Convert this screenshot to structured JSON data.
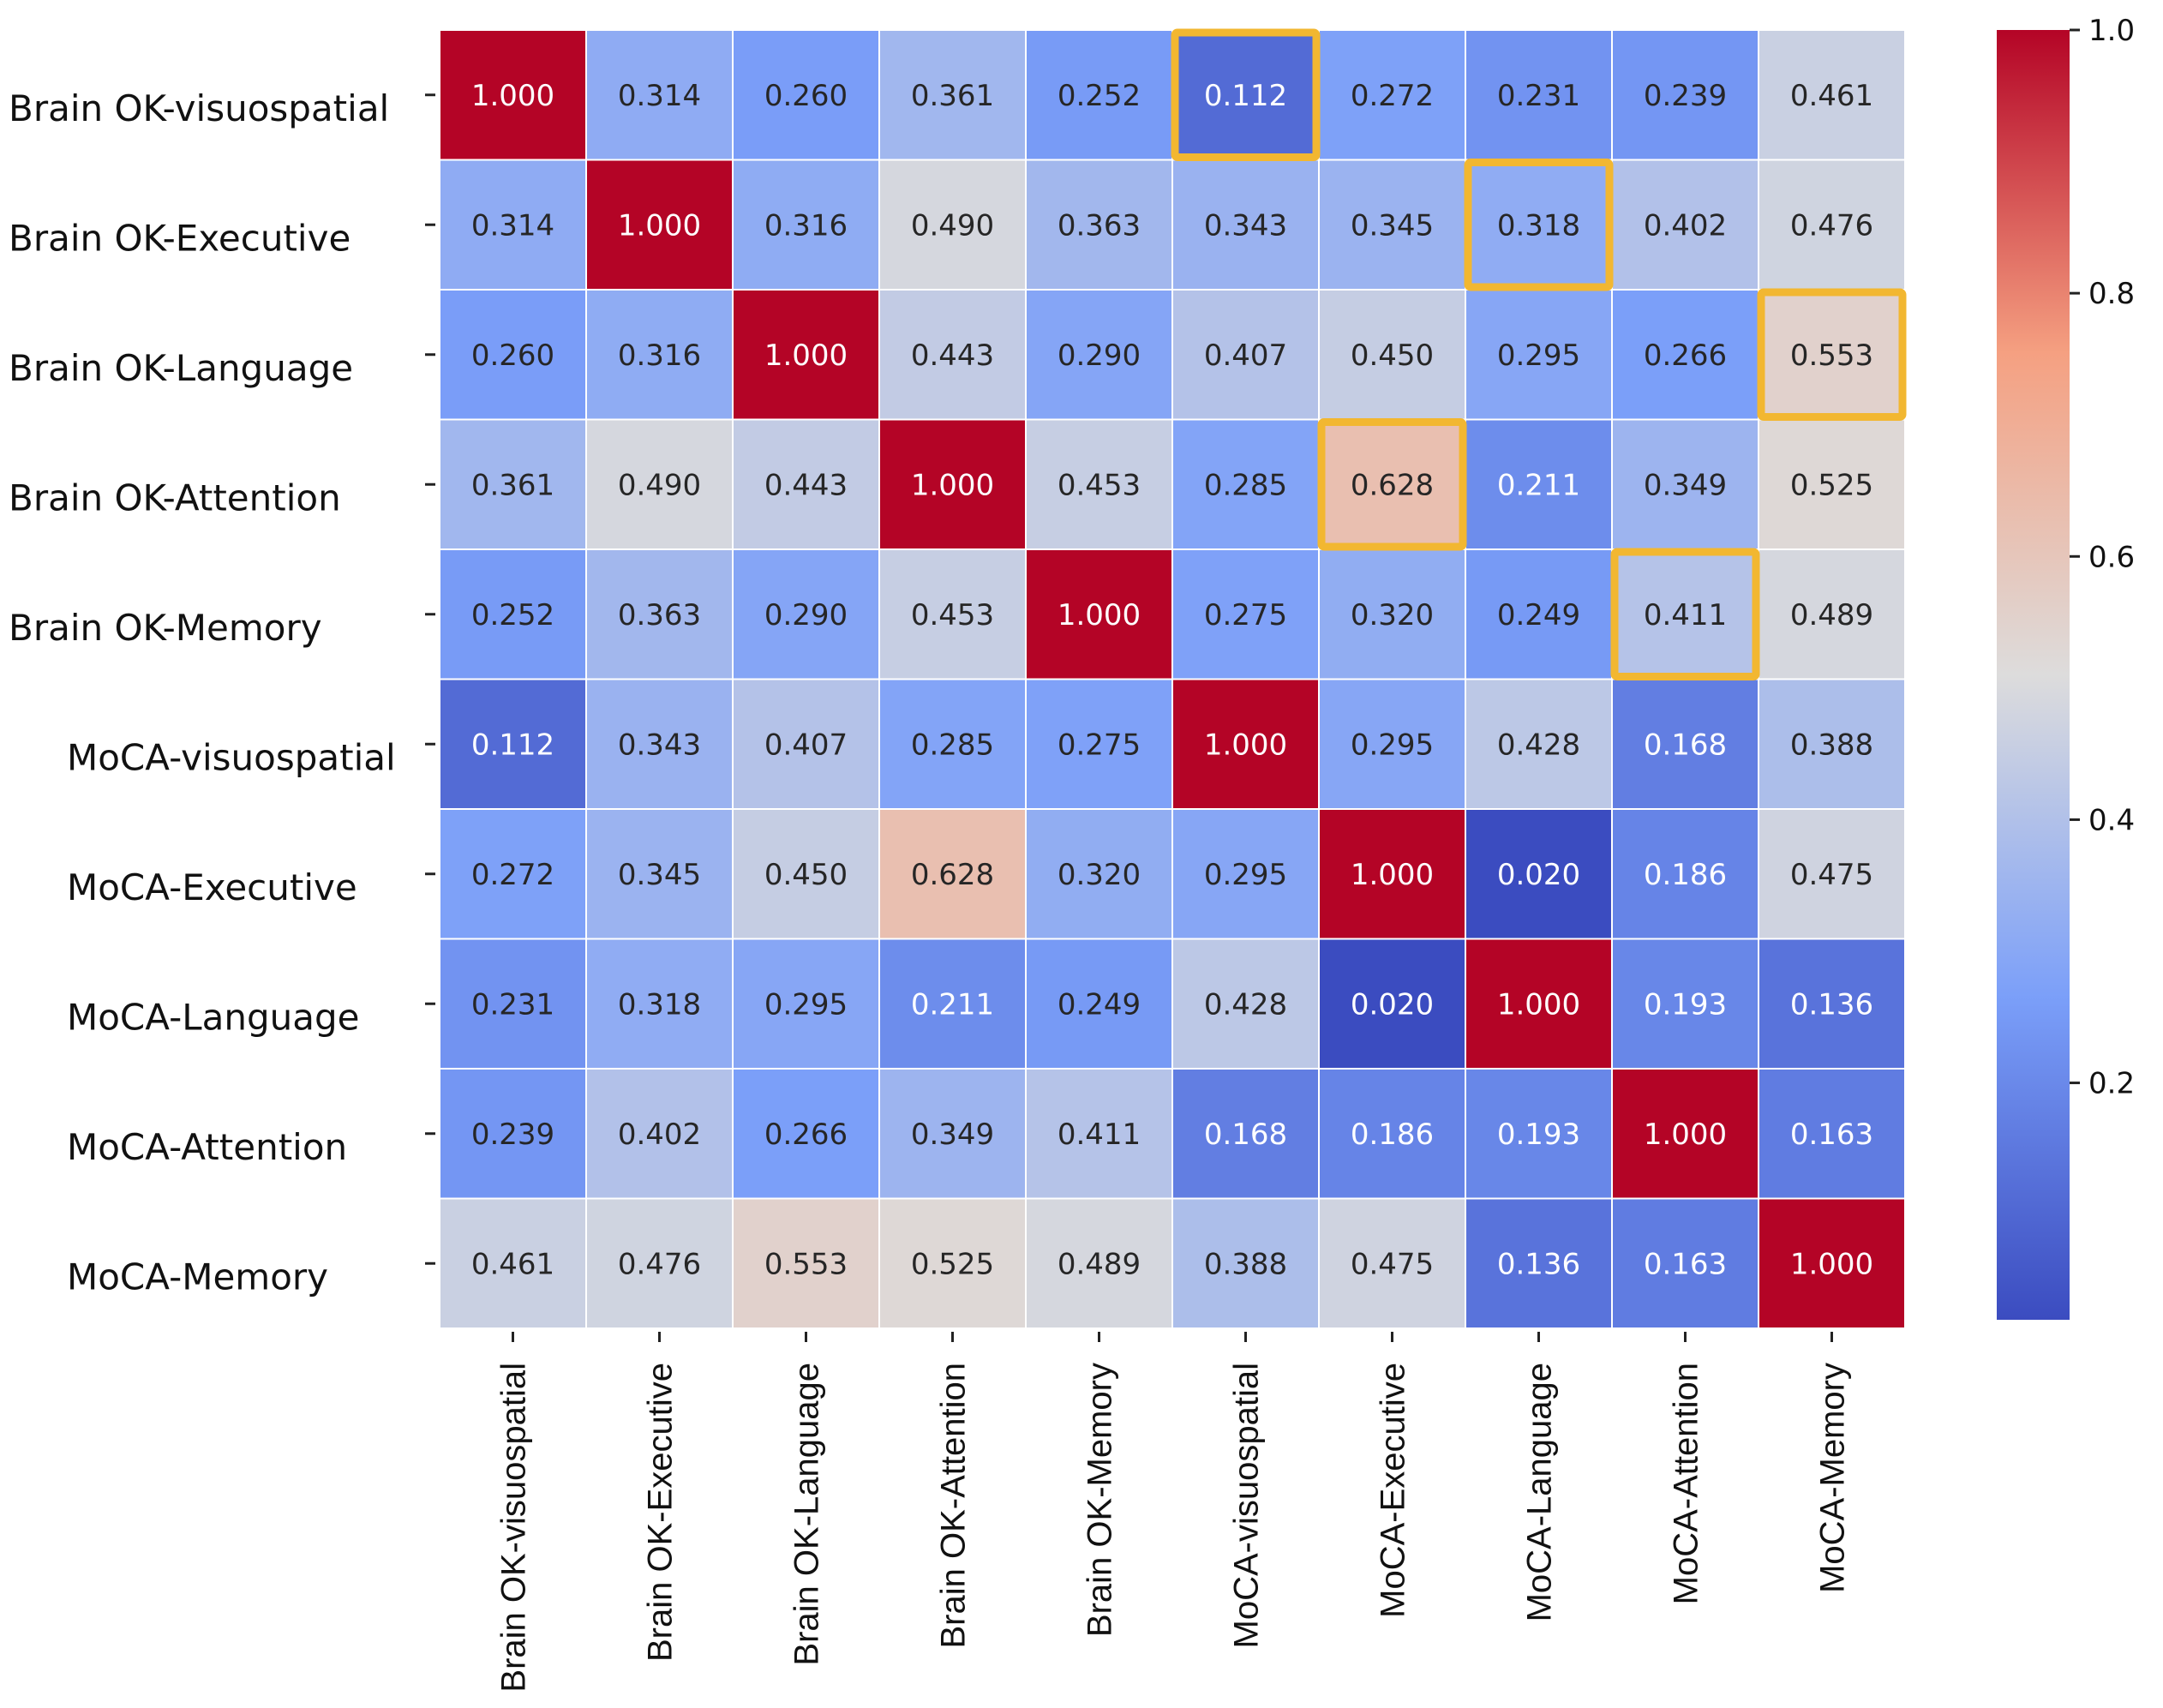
{
  "chart_data": {
    "type": "heatmap",
    "title": "",
    "row_labels": [
      "Brain OK-visuospatial",
      "Brain OK-Executive",
      "Brain OK-Language",
      "Brain OK-Attention",
      "Brain OK-Memory",
      "MoCA-visuospatial",
      "MoCA-Executive",
      "MoCA-Language",
      "MoCA-Attention",
      "MoCA-Memory"
    ],
    "col_labels": [
      "Brain OK-visuospatial",
      "Brain OK-Executive",
      "Brain OK-Language",
      "Brain OK-Attention",
      "Brain OK-Memory",
      "MoCA-visuospatial",
      "MoCA-Executive",
      "MoCA-Language",
      "MoCA-Attention",
      "MoCA-Memory"
    ],
    "values": [
      [
        1.0,
        0.314,
        0.26,
        0.361,
        0.252,
        0.112,
        0.272,
        0.231,
        0.239,
        0.461
      ],
      [
        0.314,
        1.0,
        0.316,
        0.49,
        0.363,
        0.343,
        0.345,
        0.318,
        0.402,
        0.476
      ],
      [
        0.26,
        0.316,
        1.0,
        0.443,
        0.29,
        0.407,
        0.45,
        0.295,
        0.266,
        0.553
      ],
      [
        0.361,
        0.49,
        0.443,
        1.0,
        0.453,
        0.285,
        0.628,
        0.211,
        0.349,
        0.525
      ],
      [
        0.252,
        0.363,
        0.29,
        0.453,
        1.0,
        0.275,
        0.32,
        0.249,
        0.411,
        0.489
      ],
      [
        0.112,
        0.343,
        0.407,
        0.285,
        0.275,
        1.0,
        0.295,
        0.428,
        0.168,
        0.388
      ],
      [
        0.272,
        0.345,
        0.45,
        0.628,
        0.32,
        0.295,
        1.0,
        0.02,
        0.186,
        0.475
      ],
      [
        0.231,
        0.318,
        0.295,
        0.211,
        0.249,
        0.428,
        0.02,
        1.0,
        0.193,
        0.136
      ],
      [
        0.239,
        0.402,
        0.266,
        0.349,
        0.411,
        0.168,
        0.186,
        0.193,
        1.0,
        0.163
      ],
      [
        0.461,
        0.476,
        0.553,
        0.525,
        0.489,
        0.388,
        0.475,
        0.136,
        0.163,
        1.0
      ]
    ],
    "highlighted_cells": [
      [
        0,
        5
      ],
      [
        1,
        7
      ],
      [
        2,
        9
      ],
      [
        3,
        6
      ],
      [
        4,
        8
      ]
    ],
    "colormap": "coolwarm",
    "colorbar": {
      "min": 0.02,
      "max": 1.0,
      "ticks": [
        0.2,
        0.4,
        0.6,
        0.8,
        1.0
      ],
      "tick_labels": [
        "0.2",
        "0.4",
        "0.6",
        "0.8",
        "1.0"
      ]
    },
    "value_format": "3 decimals",
    "highlight_color": "#f2b731"
  }
}
